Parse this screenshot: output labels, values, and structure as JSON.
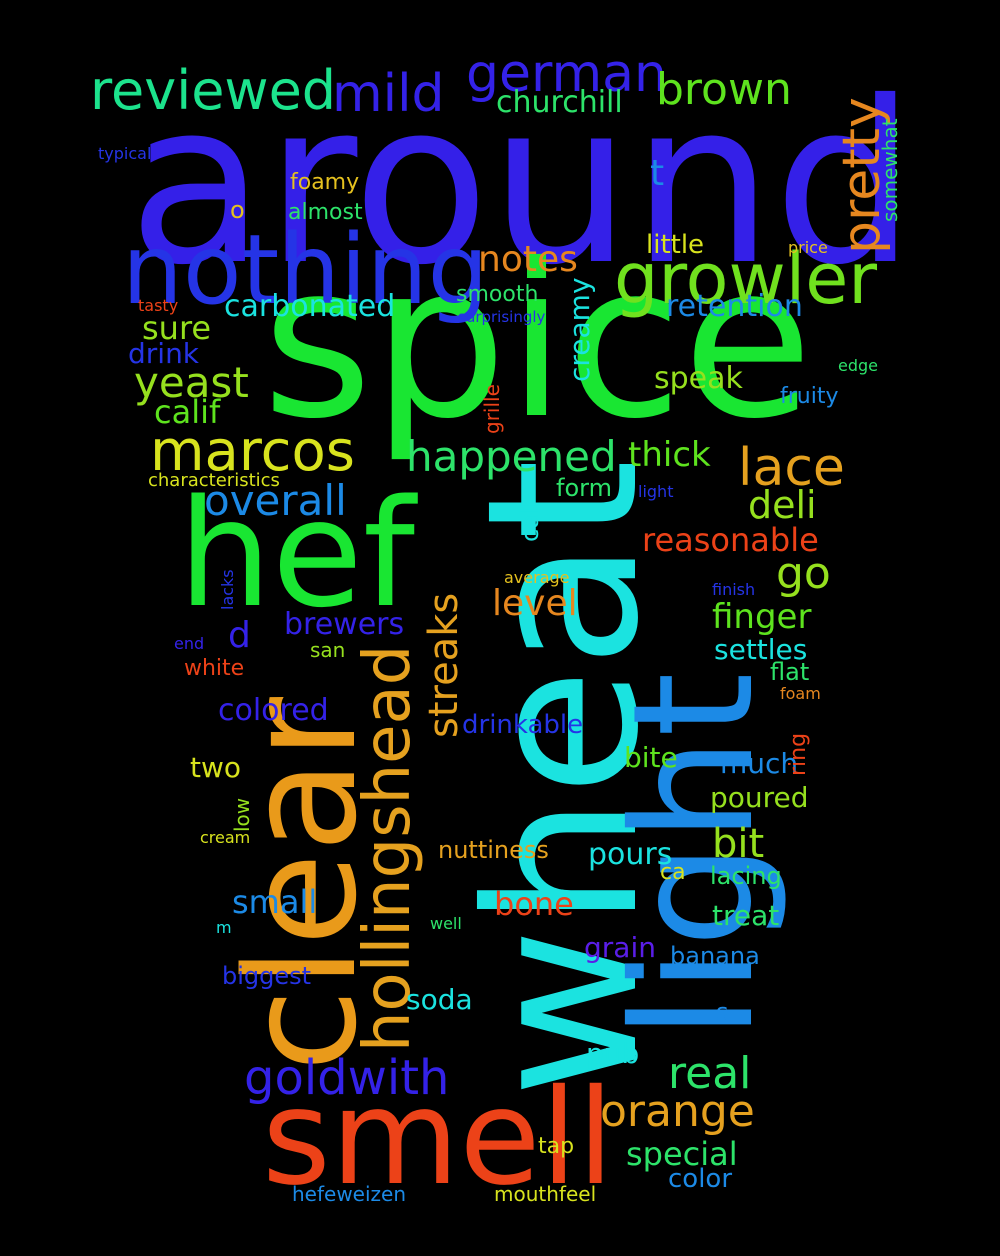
{
  "words": [
    {
      "text": "around",
      "color": "#3420E8"
    },
    {
      "text": "spice",
      "color": "#19E632"
    },
    {
      "text": "wheat",
      "color": "#1BE3E0"
    },
    {
      "text": "light",
      "color": "#1C8AE6"
    },
    {
      "text": "hef",
      "color": "#19E632"
    },
    {
      "text": "clear",
      "color": "#E99A1A"
    },
    {
      "text": "smell",
      "color": "#EC4218"
    },
    {
      "text": "nothing",
      "color": "#2534E6"
    },
    {
      "text": "hollingshead",
      "color": "#E5A11F"
    },
    {
      "text": "growler",
      "color": "#70E11E"
    },
    {
      "text": "marcos",
      "color": "#D8E31E"
    },
    {
      "text": "german",
      "color": "#3422E8"
    },
    {
      "text": "reviewed",
      "color": "#1CE38D"
    },
    {
      "text": "mild",
      "color": "#3422E8"
    },
    {
      "text": "brown",
      "color": "#5EE31E"
    },
    {
      "text": "pretty",
      "color": "#E6871F"
    },
    {
      "text": "lace",
      "color": "#E5A11F"
    },
    {
      "text": "goldwith",
      "color": "#3422E8"
    },
    {
      "text": "orange",
      "color": "#E5A11F"
    },
    {
      "text": "happened",
      "color": "#2DE36A"
    },
    {
      "text": "yeast",
      "color": "#96E01E"
    },
    {
      "text": "overall",
      "color": "#1C8AE6"
    },
    {
      "text": "streaks",
      "color": "#E5A11F"
    },
    {
      "text": "real",
      "color": "#2DE36A"
    },
    {
      "text": "bit",
      "color": "#96E01E"
    },
    {
      "text": "go",
      "color": "#96E01E"
    },
    {
      "text": "deli",
      "color": "#96E01E"
    },
    {
      "text": "notes",
      "color": "#E6871F"
    },
    {
      "text": "churchill",
      "color": "#2DE36A"
    },
    {
      "text": "carbonated",
      "color": "#1BE3E0"
    },
    {
      "text": "retention",
      "color": "#1C8AE6"
    },
    {
      "text": "reasonable",
      "color": "#EC4218"
    },
    {
      "text": "thick",
      "color": "#5EE31E"
    },
    {
      "text": "level",
      "color": "#E6871F"
    },
    {
      "text": "finger",
      "color": "#5EE31E"
    },
    {
      "text": "special",
      "color": "#2DE36A"
    },
    {
      "text": "calif",
      "color": "#5EE31E"
    },
    {
      "text": "sure",
      "color": "#96E01E"
    },
    {
      "text": "speak",
      "color": "#96E01E"
    },
    {
      "text": "brewers",
      "color": "#3422E8"
    },
    {
      "text": "pours",
      "color": "#1BE3E0"
    },
    {
      "text": "settles",
      "color": "#1BE3E0"
    },
    {
      "text": "small",
      "color": "#1C8AE6"
    },
    {
      "text": "bone",
      "color": "#EC4218"
    },
    {
      "text": "colored",
      "color": "#3422E8"
    },
    {
      "text": "poured",
      "color": "#96E01E"
    },
    {
      "text": "drink",
      "color": "#2534E6"
    },
    {
      "text": "creamy",
      "color": "#1BE3E0"
    },
    {
      "text": "d",
      "color": "#3422E8"
    },
    {
      "text": "t",
      "color": "#1C8AE6"
    },
    {
      "text": "drinkable",
      "color": "#2534E6"
    },
    {
      "text": "two",
      "color": "#D8E31E"
    },
    {
      "text": "much",
      "color": "#1C8AE6"
    },
    {
      "text": "bite",
      "color": "#5EE31E"
    },
    {
      "text": "treat",
      "color": "#2DE36A"
    },
    {
      "text": "grain",
      "color": "#5A1EE8"
    },
    {
      "text": "soda",
      "color": "#1BE3E0"
    },
    {
      "text": "pub",
      "color": "#1BE3E0"
    },
    {
      "text": "nuttiness",
      "color": "#E5A11F"
    },
    {
      "text": "banana",
      "color": "#1C8AE6"
    },
    {
      "text": "lacing",
      "color": "#2DE36A"
    },
    {
      "text": "biggest",
      "color": "#2534E6"
    },
    {
      "text": "color",
      "color": "#1C8AE6"
    },
    {
      "text": "flat",
      "color": "#2DE36A"
    },
    {
      "text": "form",
      "color": "#2DE36A"
    },
    {
      "text": "call",
      "color": "#1BE3E0"
    },
    {
      "text": "little",
      "color": "#D8E31E"
    },
    {
      "text": "smooth",
      "color": "#2DE36A"
    },
    {
      "text": "foamy",
      "color": "#E5C11F"
    },
    {
      "text": "almost",
      "color": "#2DE36A"
    },
    {
      "text": "fruity",
      "color": "#1C8AE6"
    },
    {
      "text": "somewhat",
      "color": "#2DE36A"
    },
    {
      "text": "hefeweizen",
      "color": "#1C8AE6"
    },
    {
      "text": "mouthfeel",
      "color": "#D8E31E"
    },
    {
      "text": "tap",
      "color": "#D8E31E"
    },
    {
      "text": "ca",
      "color": "#D8E31E"
    },
    {
      "text": "s",
      "color": "#1C8AE6"
    },
    {
      "text": "ring",
      "color": "#EC4218"
    },
    {
      "text": "grille",
      "color": "#EC4218"
    },
    {
      "text": "san",
      "color": "#96E01E"
    },
    {
      "text": "white",
      "color": "#EC4218"
    },
    {
      "text": "low",
      "color": "#96E01E"
    },
    {
      "text": "o",
      "color": "#E5C11F"
    },
    {
      "text": "characteristics",
      "color": "#D8E31E"
    },
    {
      "text": "typical",
      "color": "#2534E6"
    },
    {
      "text": "price",
      "color": "#E5C11F"
    },
    {
      "text": "tasty",
      "color": "#EC4218"
    },
    {
      "text": "surprisingly",
      "color": "#2534E6"
    },
    {
      "text": "edge",
      "color": "#2DE36A"
    },
    {
      "text": "light",
      "color": "#2534E6"
    },
    {
      "text": "average",
      "color": "#E5C11F"
    },
    {
      "text": "finish",
      "color": "#2534E6"
    },
    {
      "text": "lacks",
      "color": "#2534E6"
    },
    {
      "text": "end",
      "color": "#3422E8"
    },
    {
      "text": "foam",
      "color": "#E6871F"
    },
    {
      "text": "cream",
      "color": "#D8E31E"
    },
    {
      "text": "well",
      "color": "#2DE36A"
    },
    {
      "text": "m",
      "color": "#1BE3E0"
    }
  ]
}
